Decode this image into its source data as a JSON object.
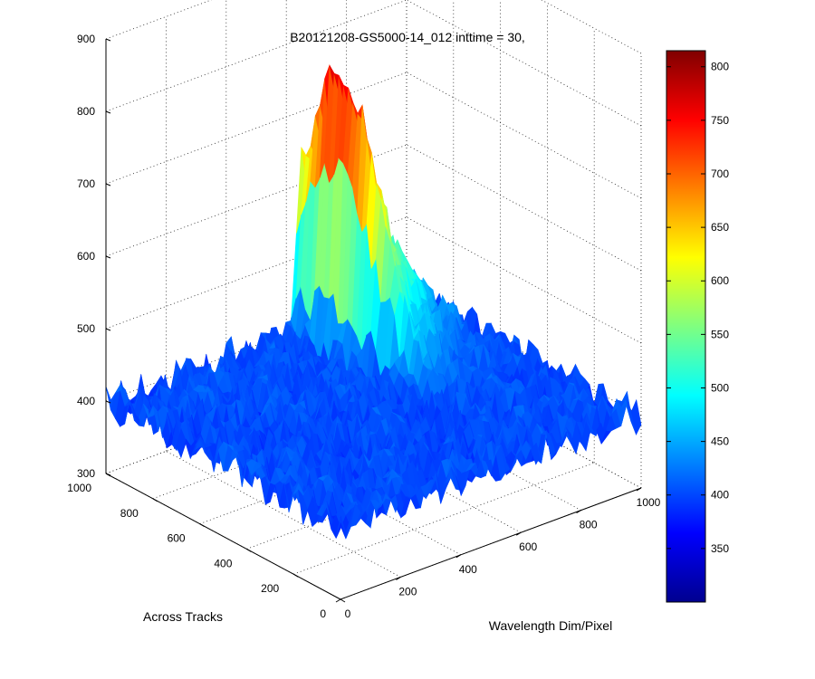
{
  "chart_data": {
    "type": "surface",
    "title": "B20121208-GS5000-14_012 inttime = 30,",
    "xlabel": "Wavelength Dim/Pixel",
    "ylabel": "Across Tracks",
    "zlabel": "",
    "x_ticks": [
      0,
      200,
      400,
      600,
      800,
      1000
    ],
    "y_ticks": [
      0,
      200,
      400,
      600,
      800,
      1000
    ],
    "z_ticks": [
      300,
      400,
      500,
      600,
      700,
      800,
      900
    ],
    "xlim": [
      0,
      1000
    ],
    "ylim": [
      0,
      1000
    ],
    "zlim": [
      300,
      900
    ],
    "grid": true,
    "colormap": "jet",
    "colorbar": {
      "range": [
        300,
        815
      ],
      "ticks": [
        350,
        400,
        450,
        500,
        550,
        600,
        650,
        700,
        750,
        800
      ]
    },
    "surface": {
      "background_level": 400,
      "noise_amplitude": 25,
      "peak_value": 790,
      "peak_wavelength_pixel": 650,
      "peak_across_track": 830,
      "feature_wavelength_range": [
        600,
        900
      ],
      "feature_across_track_range": [
        350,
        1000
      ]
    }
  }
}
